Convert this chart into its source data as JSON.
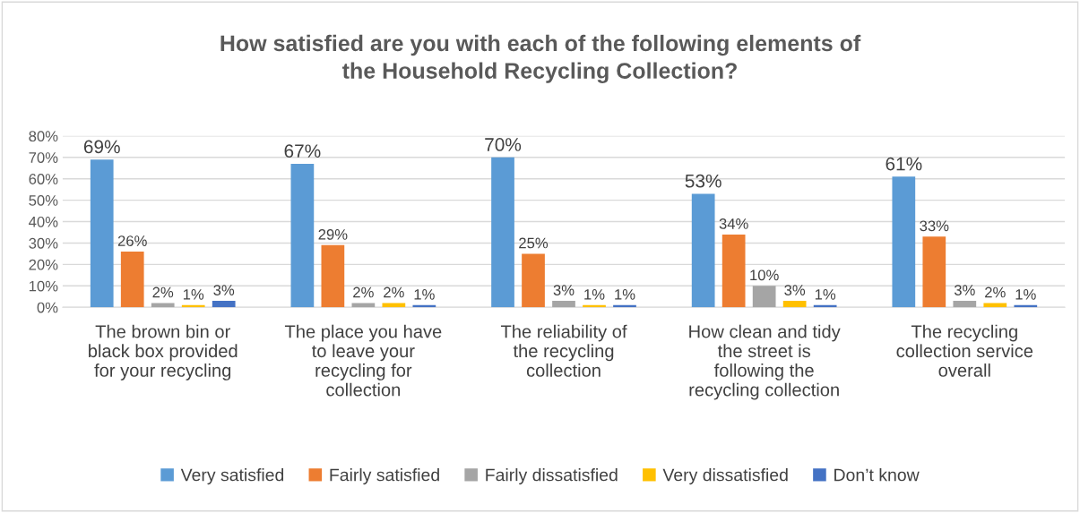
{
  "chart_data": {
    "type": "bar",
    "title": "How satisfied are you with each of the following elements of\nthe Household Recycling Collection?",
    "categories": [
      "The brown bin or\nblack box provided\nfor your recycling",
      "The place you have\nto leave your\nrecycling for\ncollection",
      "The reliability of\nthe recycling\ncollection",
      "How clean and tidy\nthe street is\nfollowing the\nrecycling collection",
      "The recycling\ncollection service\noverall"
    ],
    "series": [
      {
        "name": "Very satisfied",
        "color": "#5b9bd5",
        "values": [
          69,
          67,
          70,
          53,
          61
        ],
        "value_labels": [
          "69%",
          "67%",
          "70%",
          "53%",
          "61%"
        ]
      },
      {
        "name": "Fairly satisfied",
        "color": "#ed7d31",
        "values": [
          26,
          29,
          25,
          34,
          33
        ],
        "value_labels": [
          "26%",
          "29%",
          "25%",
          "34%",
          "33%"
        ]
      },
      {
        "name": "Fairly dissatisfied",
        "color": "#a5a5a5",
        "values": [
          2,
          2,
          3,
          10,
          3
        ],
        "value_labels": [
          "2%",
          "2%",
          "3%",
          "10%",
          "3%"
        ]
      },
      {
        "name": "Very dissatisfied",
        "color": "#ffc000",
        "values": [
          1,
          2,
          1,
          3,
          2
        ],
        "value_labels": [
          "1%",
          "2%",
          "1%",
          "3%",
          "2%"
        ]
      },
      {
        "name": "Don’t know",
        "color": "#4472c4",
        "values": [
          3,
          1,
          1,
          1,
          1
        ],
        "value_labels": [
          "3%",
          "1%",
          "1%",
          "1%",
          "1%"
        ]
      }
    ],
    "ylim": [
      0,
      80
    ],
    "yticks": [
      {
        "value": 0,
        "label": "0%"
      },
      {
        "value": 10,
        "label": "10%"
      },
      {
        "value": 20,
        "label": "20%"
      },
      {
        "value": 30,
        "label": "30%"
      },
      {
        "value": 40,
        "label": "40%"
      },
      {
        "value": 50,
        "label": "50%"
      },
      {
        "value": 60,
        "label": "60%"
      },
      {
        "value": 70,
        "label": "70%"
      },
      {
        "value": 80,
        "label": "80%"
      }
    ],
    "grid": "y",
    "legend": "bottom"
  }
}
